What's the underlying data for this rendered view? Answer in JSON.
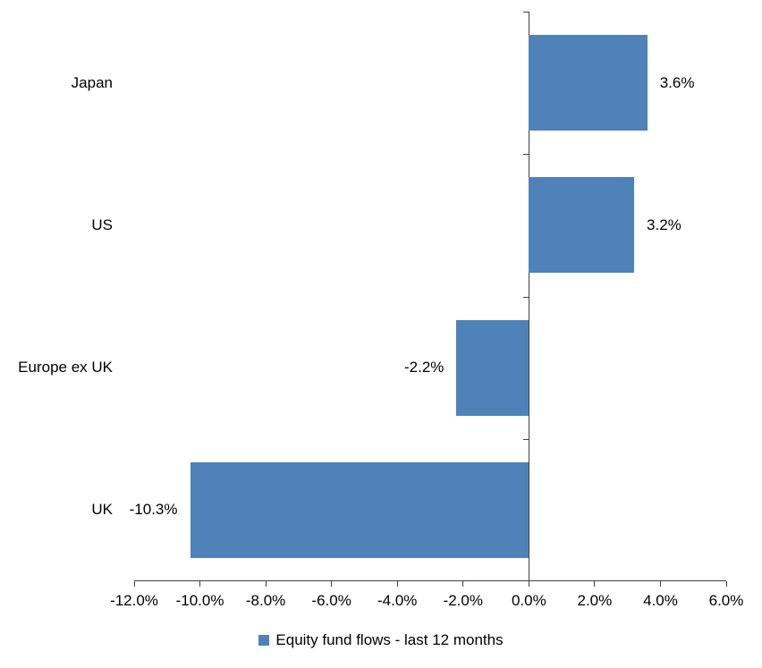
{
  "chart_data": {
    "type": "bar",
    "orientation": "horizontal",
    "title": "",
    "categories": [
      "Japan",
      "US",
      "Europe ex UK",
      "UK"
    ],
    "values": [
      3.6,
      3.2,
      -2.2,
      -10.3
    ],
    "data_labels": [
      "3.6%",
      "3.2%",
      "-2.2%",
      "-10.3%"
    ],
    "series": [
      {
        "name": "Equity fund flows - last 12 months",
        "values": [
          3.6,
          3.2,
          -2.2,
          -10.3
        ]
      }
    ],
    "xlabel": "",
    "ylabel": "",
    "xlim": [
      -12,
      6
    ],
    "x_tick_step": 2,
    "x_tick_labels": [
      "-12.0%",
      "-10.0%",
      "-8.0%",
      "-6.0%",
      "-4.0%",
      "-2.0%",
      "0.0%",
      "2.0%",
      "4.0%",
      "6.0%"
    ],
    "grid": false,
    "legend_position": "bottom",
    "bar_color": "#4E82B8",
    "axis_color": "#404040",
    "text_color": "#000000"
  },
  "legend": {
    "label": "Equity fund flows - last 12 months",
    "swatch_color": "#4E82B8"
  }
}
